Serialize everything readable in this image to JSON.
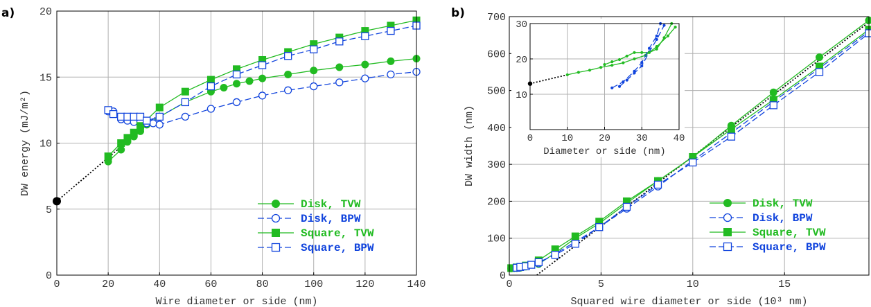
{
  "colors": {
    "tvw": "#22bb22",
    "bpw": "#1144dd",
    "fit": "#000000"
  },
  "chart_data": [
    {
      "id": "a",
      "type": "line",
      "panel_label": "a)",
      "xlabel": "Wire diameter or side (nm)",
      "ylabel": "DW energy (mJ/m²)",
      "xlim": [
        0,
        140
      ],
      "ylim": [
        0,
        20
      ],
      "xticks": [
        0,
        20,
        40,
        60,
        80,
        100,
        120,
        140
      ],
      "yticks": [
        0,
        5,
        10,
        15,
        20
      ],
      "grid": true,
      "legend_position": "bottom-right",
      "series": [
        {
          "name": "Disk, TVW",
          "marker": "circle-filled",
          "color_key": "tvw",
          "dash": "solid",
          "x": [
            20,
            25,
            27.5,
            30,
            32.5,
            35,
            40,
            50,
            60,
            65,
            70,
            75,
            80,
            90,
            100,
            110,
            120,
            130,
            140
          ],
          "y": [
            8.6,
            9.5,
            10.1,
            10.5,
            10.9,
            11.4,
            12.0,
            13.1,
            13.9,
            14.2,
            14.5,
            14.7,
            14.9,
            15.2,
            15.5,
            15.75,
            15.95,
            16.2,
            16.4
          ]
        },
        {
          "name": "Disk, BPW",
          "marker": "circle-open",
          "color_key": "bpw",
          "dash": "long",
          "x": [
            20,
            22,
            25,
            27.5,
            30,
            32.5,
            35,
            37.5,
            40,
            50,
            60,
            70,
            80,
            90,
            100,
            110,
            120,
            130,
            140
          ],
          "y": [
            12.4,
            12.4,
            11.8,
            11.7,
            11.6,
            11.6,
            11.5,
            11.5,
            11.4,
            12.0,
            12.6,
            13.1,
            13.6,
            14.0,
            14.3,
            14.6,
            14.9,
            15.2,
            15.4
          ]
        },
        {
          "name": "Square, TVW",
          "marker": "square-filled",
          "color_key": "tvw",
          "dash": "solid",
          "x": [
            20,
            25,
            27.5,
            30,
            32.5,
            40,
            50,
            60,
            70,
            80,
            90,
            100,
            110,
            120,
            130,
            140
          ],
          "y": [
            9.0,
            10.0,
            10.4,
            10.8,
            11.3,
            12.7,
            13.9,
            14.8,
            15.6,
            16.3,
            16.9,
            17.5,
            18.0,
            18.5,
            18.9,
            19.3
          ]
        },
        {
          "name": "Square, BPW",
          "marker": "square-open",
          "color_key": "bpw",
          "dash": "long",
          "x": [
            20,
            22,
            25,
            27.5,
            30,
            32.5,
            35,
            40,
            50,
            60,
            70,
            80,
            90,
            100,
            110,
            120,
            130,
            140
          ],
          "y": [
            12.5,
            12.2,
            12.0,
            12.0,
            12.0,
            12.0,
            11.7,
            12.0,
            13.1,
            14.3,
            15.2,
            15.9,
            16.6,
            17.1,
            17.7,
            18.1,
            18.5,
            18.9
          ]
        }
      ],
      "fit_line": {
        "x": [
          0,
          40
        ],
        "y": [
          5.6,
          12.2
        ]
      },
      "fit_point": {
        "x": 0,
        "y": 5.6
      }
    },
    {
      "id": "b",
      "type": "line",
      "panel_label": "b)",
      "xlabel": "Squared wire diameter or side (10³ nm)",
      "ylabel": "DW width (nm)",
      "xlim": [
        0,
        19.6
      ],
      "ylim": [
        0,
        700
      ],
      "xticks": [
        0,
        5,
        10,
        15
      ],
      "yticks": [
        0,
        100,
        200,
        300,
        400,
        500,
        600,
        700
      ],
      "grid": true,
      "legend_position": "bottom-right",
      "series": [
        {
          "name": "Disk, TVW",
          "marker": "circle-filled",
          "color_key": "tvw",
          "dash": "solid",
          "x": [
            0.1,
            0.4,
            0.6,
            0.9,
            1.6,
            2.5,
            3.6,
            4.9,
            6.4,
            8.1,
            10.0,
            12.1,
            14.4,
            16.9,
            19.6
          ],
          "y": [
            18,
            19,
            20,
            23,
            30,
            60,
            100,
            140,
            195,
            255,
            320,
            405,
            495,
            590,
            690
          ]
        },
        {
          "name": "Disk, BPW",
          "marker": "circle-open",
          "color_key": "bpw",
          "dash": "long",
          "x": [
            0.4,
            0.6,
            0.9,
            1.6,
            2.5,
            3.6,
            4.9,
            6.4,
            8.1,
            10.0,
            12.1,
            14.4,
            16.9,
            19.6
          ],
          "y": [
            20,
            22,
            25,
            32,
            58,
            90,
            130,
            180,
            240,
            310,
            385,
            470,
            560,
            660
          ]
        },
        {
          "name": "Square, TVW",
          "marker": "square-filled",
          "color_key": "tvw",
          "dash": "solid",
          "x": [
            0.1,
            0.4,
            0.6,
            0.9,
            1.6,
            2.5,
            3.6,
            4.9,
            6.4,
            8.1,
            10.0,
            12.1,
            14.4,
            16.9,
            19.6
          ],
          "y": [
            19,
            21,
            22,
            26,
            40,
            70,
            105,
            145,
            200,
            255,
            320,
            395,
            475,
            565,
            665
          ]
        },
        {
          "name": "Square, BPW",
          "marker": "square-open",
          "color_key": "bpw",
          "dash": "long",
          "x": [
            0.4,
            0.6,
            0.9,
            1.2,
            1.6,
            2.5,
            3.6,
            4.9,
            6.4,
            8.1,
            10.0,
            12.1,
            14.4,
            16.9,
            19.6
          ],
          "y": [
            20,
            22,
            24,
            28,
            35,
            55,
            85,
            130,
            185,
            245,
            305,
            375,
            460,
            550,
            655
          ]
        }
      ],
      "fit_line": {
        "x": [
          1.5,
          19.6
        ],
        "y": [
          0,
          685
        ]
      }
    },
    {
      "id": "b-inset",
      "type": "line",
      "xlabel": "Diameter or side (nm)",
      "ylabel": "",
      "xlim": [
        0,
        40
      ],
      "ylim": [
        0,
        30
      ],
      "xticks": [
        0,
        10,
        20,
        30,
        40
      ],
      "yticks": [
        10,
        20,
        30
      ],
      "grid": true,
      "series": [
        {
          "name": "Disk, TVW",
          "marker": "dot",
          "color_key": "tvw",
          "dash": "solid",
          "x": [
            10,
            13,
            16,
            19,
            22,
            25,
            28,
            31,
            34,
            37,
            39
          ],
          "y": [
            15.5,
            16.2,
            16.8,
            17.6,
            18.2,
            18.9,
            20.0,
            21.0,
            23.5,
            26.5,
            29.0
          ]
        },
        {
          "name": "Disk, BPW",
          "marker": "dot",
          "color_key": "bpw",
          "dash": "long",
          "x": [
            24,
            26,
            28,
            30,
            32,
            34,
            36
          ],
          "y": [
            12.2,
            14.0,
            16.0,
            18.0,
            22.0,
            25.5,
            29.5
          ]
        },
        {
          "name": "Square, TVW",
          "marker": "dot",
          "color_key": "tvw",
          "dash": "solid",
          "x": [
            20,
            22,
            24,
            26,
            28,
            30,
            32,
            34,
            36,
            38
          ],
          "y": [
            18.4,
            19.2,
            19.8,
            20.8,
            21.8,
            21.8,
            21.8,
            22.8,
            26.0,
            30.0
          ]
        },
        {
          "name": "Square, BPW",
          "marker": "dot",
          "color_key": "bpw",
          "dash": "long",
          "x": [
            22,
            25,
            28,
            30,
            32,
            34,
            35
          ],
          "y": [
            11.8,
            13.5,
            16.5,
            19.0,
            23.0,
            26.5,
            30.0
          ]
        }
      ],
      "fit_line": {
        "x": [
          0,
          10
        ],
        "y": [
          13.0,
          15.5
        ]
      },
      "fit_point": {
        "x": 0,
        "y": 13.0
      }
    }
  ]
}
